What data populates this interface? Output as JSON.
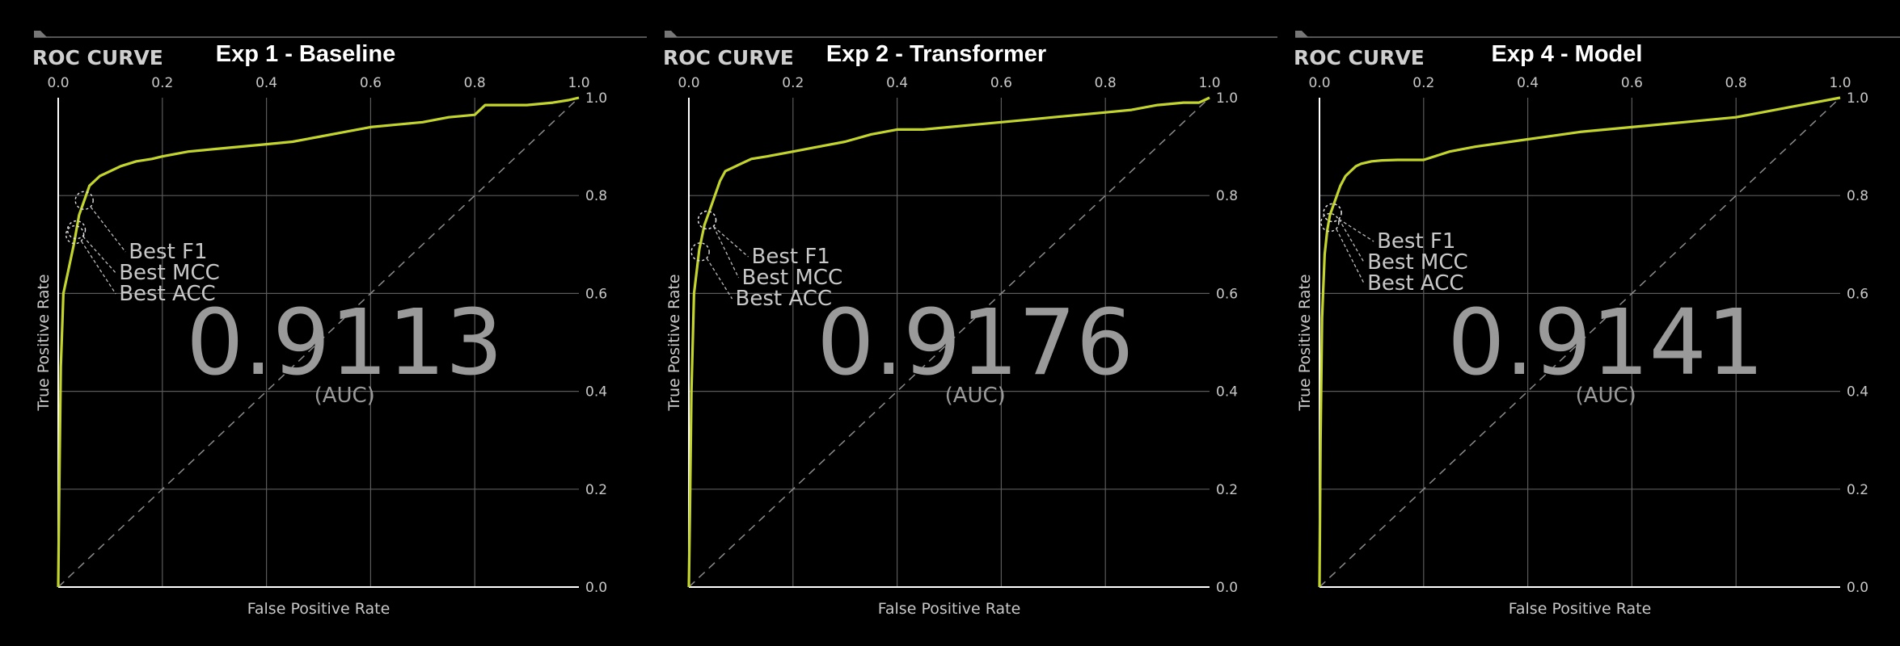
{
  "colors": {
    "background": "#000000",
    "curve": "#c3d52d",
    "axis": "#ffffff",
    "grid": "#5a5a5a",
    "diagonal": "#8a8a8a",
    "text": "#c8c8c8",
    "auc": "#9a9a9a",
    "title": "#ffffff"
  },
  "chart_data": [
    {
      "type": "line",
      "badge": "ROC CURVE",
      "title": "Exp 1 - Baseline",
      "xlabel": "False Positive Rate",
      "ylabel": "True Positive Rate",
      "xlim": [
        0,
        1
      ],
      "ylim": [
        0,
        1
      ],
      "xticks": [
        "0.0",
        "0.2",
        "0.4",
        "0.6",
        "0.8",
        "1.0"
      ],
      "yticks": [
        "0.0",
        "0.2",
        "0.4",
        "0.6",
        "0.8",
        "1.0"
      ],
      "grid": true,
      "auc_value": "0.9113",
      "auc_label": "(AUC)",
      "series": [
        {
          "x": [
            0,
            0.002,
            0.005,
            0.01,
            0.02,
            0.03,
            0.04,
            0.05,
            0.06,
            0.07,
            0.08,
            0.1,
            0.12,
            0.15,
            0.18,
            0.2,
            0.25,
            0.3,
            0.35,
            0.4,
            0.45,
            0.5,
            0.55,
            0.6,
            0.65,
            0.7,
            0.75,
            0.8,
            0.82,
            0.85,
            0.9,
            0.95,
            0.98,
            1.0
          ],
          "y": [
            0,
            0.2,
            0.45,
            0.6,
            0.65,
            0.7,
            0.76,
            0.79,
            0.82,
            0.83,
            0.84,
            0.85,
            0.86,
            0.87,
            0.875,
            0.88,
            0.89,
            0.895,
            0.9,
            0.905,
            0.91,
            0.92,
            0.93,
            0.94,
            0.945,
            0.95,
            0.96,
            0.965,
            0.985,
            0.985,
            0.985,
            0.99,
            0.995,
            1.0
          ]
        }
      ],
      "annotations": [
        {
          "label": "Best F1",
          "x": 0.05,
          "y": 0.79
        },
        {
          "label": "Best MCC",
          "x": 0.035,
          "y": 0.73
        },
        {
          "label": "Best ACC",
          "x": 0.032,
          "y": 0.72
        }
      ]
    },
    {
      "type": "line",
      "badge": "ROC CURVE",
      "title": "Exp 2 - Transformer",
      "xlabel": "False Positive Rate",
      "ylabel": "True Positive Rate",
      "xlim": [
        0,
        1
      ],
      "ylim": [
        0,
        1
      ],
      "xticks": [
        "0.0",
        "0.2",
        "0.4",
        "0.6",
        "0.8",
        "1.0"
      ],
      "yticks": [
        "0.0",
        "0.2",
        "0.4",
        "0.6",
        "0.8",
        "1.0"
      ],
      "grid": true,
      "auc_value": "0.9176",
      "auc_label": "(AUC)",
      "series": [
        {
          "x": [
            0,
            0.002,
            0.005,
            0.01,
            0.02,
            0.03,
            0.04,
            0.05,
            0.06,
            0.07,
            0.08,
            0.1,
            0.12,
            0.15,
            0.2,
            0.25,
            0.3,
            0.35,
            0.4,
            0.45,
            0.5,
            0.55,
            0.6,
            0.65,
            0.7,
            0.75,
            0.8,
            0.85,
            0.9,
            0.95,
            0.98,
            1.0
          ],
          "y": [
            0,
            0.15,
            0.4,
            0.6,
            0.69,
            0.74,
            0.77,
            0.8,
            0.83,
            0.85,
            0.855,
            0.865,
            0.875,
            0.88,
            0.89,
            0.9,
            0.91,
            0.925,
            0.935,
            0.935,
            0.94,
            0.945,
            0.95,
            0.955,
            0.96,
            0.965,
            0.97,
            0.975,
            0.985,
            0.99,
            0.99,
            1.0
          ]
        }
      ],
      "annotations": [
        {
          "label": "Best F1",
          "x": 0.035,
          "y": 0.75
        },
        {
          "label": "Best MCC",
          "x": 0.035,
          "y": 0.75
        },
        {
          "label": "Best ACC",
          "x": 0.022,
          "y": 0.685
        }
      ]
    },
    {
      "type": "line",
      "badge": "ROC CURVE",
      "title": "Exp 4 - Model",
      "xlabel": "False Positive Rate",
      "ylabel": "True Positive Rate",
      "xlim": [
        0,
        1
      ],
      "ylim": [
        0,
        1
      ],
      "xticks": [
        "0.0",
        "0.2",
        "0.4",
        "0.6",
        "0.8",
        "1.0"
      ],
      "yticks": [
        "0.0",
        "0.2",
        "0.4",
        "0.6",
        "0.8",
        "1.0"
      ],
      "grid": true,
      "auc_value": "0.9141",
      "auc_label": "(AUC)",
      "series": [
        {
          "x": [
            0,
            0.002,
            0.005,
            0.01,
            0.015,
            0.02,
            0.03,
            0.04,
            0.05,
            0.06,
            0.07,
            0.08,
            0.1,
            0.12,
            0.15,
            0.18,
            0.2,
            0.25,
            0.3,
            0.4,
            0.5,
            0.6,
            0.7,
            0.8,
            0.9,
            1.0
          ],
          "y": [
            0,
            0.3,
            0.55,
            0.68,
            0.73,
            0.76,
            0.79,
            0.82,
            0.84,
            0.85,
            0.86,
            0.865,
            0.87,
            0.872,
            0.873,
            0.873,
            0.873,
            0.89,
            0.9,
            0.915,
            0.93,
            0.94,
            0.95,
            0.96,
            0.98,
            1.0
          ]
        }
      ],
      "annotations": [
        {
          "label": "Best F1",
          "x": 0.025,
          "y": 0.765
        },
        {
          "label": "Best MCC",
          "x": 0.025,
          "y": 0.765
        },
        {
          "label": "Best ACC",
          "x": 0.02,
          "y": 0.745
        }
      ]
    }
  ]
}
